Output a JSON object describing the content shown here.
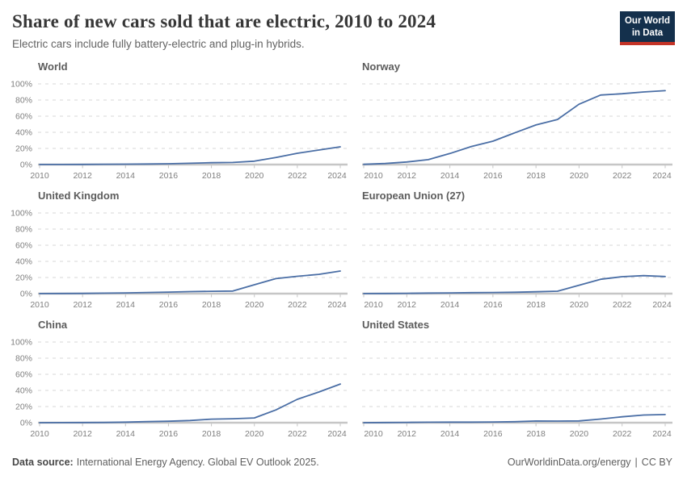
{
  "header": {
    "title": "Share of new cars sold that are electric, 2010 to 2024",
    "subtitle": "Electric cars include fully battery-electric and plug-in hybrids.",
    "logo_line1": "Our World",
    "logo_line2": "in Data"
  },
  "footer": {
    "source_label": "Data source:",
    "source_text": "International Energy Agency. Global EV Outlook 2025.",
    "link": "OurWorldinData.org/energy",
    "divider": "|",
    "license": "CC BY"
  },
  "colors": {
    "line": "#4a6ea5",
    "grid": "#d7d7d7",
    "axis": "#c6c6c6",
    "axis_text": "#7f7f7f",
    "logo_navy": "#14304c",
    "logo_red": "#c43327"
  },
  "axes": {
    "x": [
      2010,
      2011,
      2012,
      2013,
      2014,
      2015,
      2016,
      2017,
      2018,
      2019,
      2020,
      2021,
      2022,
      2023,
      2024
    ],
    "xticks": [
      2010,
      2012,
      2014,
      2016,
      2018,
      2020,
      2022,
      2024
    ],
    "xtick_labels": [
      "2010",
      "2012",
      "2014",
      "2016",
      "2018",
      "2020",
      "2022",
      "2024"
    ],
    "yticks": [
      0,
      20,
      40,
      60,
      80,
      100
    ],
    "ytick_labels": [
      "0%",
      "20%",
      "40%",
      "60%",
      "80%",
      "100%"
    ],
    "ylim": [
      0,
      100
    ],
    "grid": "dashed-horizontal",
    "y_labels_shown_on": "left-column-only"
  },
  "chart_data": [
    {
      "type": "line",
      "title": "World",
      "unit": "%",
      "values": [
        0.1,
        0.1,
        0.2,
        0.4,
        0.5,
        0.7,
        1.0,
        1.6,
        2.3,
        2.6,
        4.2,
        8.7,
        14.0,
        18.0,
        22.0
      ]
    },
    {
      "type": "line",
      "title": "Norway",
      "unit": "%",
      "values": [
        0.3,
        1.3,
        3.2,
        6.1,
        13.7,
        22.4,
        29.0,
        39.2,
        49.1,
        55.9,
        74.8,
        86.2,
        87.8,
        90.0,
        91.6
      ]
    },
    {
      "type": "line",
      "title": "United Kingdom",
      "unit": "%",
      "values": [
        0.1,
        0.2,
        0.3,
        0.6,
        0.9,
        1.4,
        1.9,
        2.5,
        2.9,
        3.2,
        11.0,
        18.6,
        21.5,
        23.9,
        28.0
      ]
    },
    {
      "type": "line",
      "title": "European Union (27)",
      "unit": "%",
      "values": [
        0.1,
        0.2,
        0.4,
        0.7,
        0.9,
        1.2,
        1.4,
        1.7,
        2.3,
        3.0,
        10.4,
        17.8,
        21.0,
        22.3,
        21.2
      ]
    },
    {
      "type": "line",
      "title": "China",
      "unit": "%",
      "values": [
        0.0,
        0.1,
        0.2,
        0.3,
        0.7,
        1.3,
        1.8,
        2.7,
        4.4,
        4.9,
        5.9,
        15.8,
        29.0,
        38.0,
        47.9
      ]
    },
    {
      "type": "line",
      "title": "United States",
      "unit": "%",
      "values": [
        0.0,
        0.2,
        0.4,
        0.6,
        0.7,
        0.7,
        0.9,
        1.2,
        2.1,
        2.0,
        2.2,
        4.5,
        7.3,
        9.5,
        10.1
      ]
    }
  ]
}
